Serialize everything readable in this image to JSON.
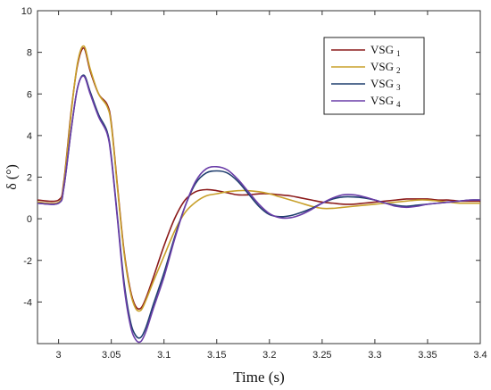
{
  "chart_data": {
    "type": "line",
    "xlabel": "Time (s)",
    "ylabel": "δ (°)",
    "xlim": [
      2.98,
      3.4
    ],
    "ylim": [
      -6,
      10
    ],
    "x_ticks": [
      3,
      3.05,
      3.1,
      3.15,
      3.2,
      3.25,
      3.3,
      3.35,
      3.4
    ],
    "x_tick_labels": [
      "3",
      "3.05",
      "3.1",
      "3.15",
      "3.2",
      "3.25",
      "3.3",
      "3.35",
      "3.4"
    ],
    "y_ticks": [
      -4,
      -2,
      0,
      2,
      4,
      6,
      8,
      10
    ],
    "y_tick_labels": [
      "-4",
      "-2",
      "0",
      "2",
      "4",
      "6",
      "8",
      "10"
    ],
    "grid": false,
    "legend_position": "top-right",
    "series": [
      {
        "name": "VSG",
        "subscript": "1",
        "color": "#8B1A1A",
        "x": [
          2.98,
          3.0,
          3.005,
          3.012,
          3.018,
          3.024,
          3.03,
          3.038,
          3.046,
          3.05,
          3.056,
          3.062,
          3.068,
          3.073,
          3.078,
          3.083,
          3.09,
          3.1,
          3.11,
          3.12,
          3.13,
          3.14,
          3.15,
          3.16,
          3.17,
          3.18,
          3.19,
          3.2,
          3.21,
          3.22,
          3.23,
          3.24,
          3.25,
          3.26,
          3.27,
          3.28,
          3.29,
          3.3,
          3.31,
          3.32,
          3.33,
          3.34,
          3.35,
          3.36,
          3.37,
          3.38,
          3.39,
          3.4
        ],
        "y": [
          0.9,
          0.9,
          1.8,
          5.2,
          7.4,
          8.2,
          7.1,
          6.0,
          5.5,
          4.6,
          1.5,
          -1.5,
          -3.4,
          -4.2,
          -4.3,
          -3.8,
          -2.8,
          -1.3,
          0.0,
          0.9,
          1.3,
          1.4,
          1.35,
          1.25,
          1.15,
          1.15,
          1.2,
          1.2,
          1.15,
          1.1,
          1.0,
          0.9,
          0.8,
          0.75,
          0.7,
          0.7,
          0.75,
          0.8,
          0.85,
          0.9,
          0.95,
          0.95,
          0.95,
          0.9,
          0.9,
          0.85,
          0.85,
          0.85
        ]
      },
      {
        "name": "VSG",
        "subscript": "2",
        "color": "#C8A02A",
        "x": [
          2.98,
          3.0,
          3.005,
          3.012,
          3.018,
          3.024,
          3.03,
          3.038,
          3.046,
          3.05,
          3.056,
          3.062,
          3.068,
          3.073,
          3.078,
          3.083,
          3.09,
          3.1,
          3.11,
          3.12,
          3.13,
          3.14,
          3.15,
          3.16,
          3.17,
          3.18,
          3.19,
          3.2,
          3.21,
          3.22,
          3.23,
          3.24,
          3.25,
          3.26,
          3.27,
          3.28,
          3.29,
          3.3,
          3.31,
          3.32,
          3.33,
          3.34,
          3.35,
          3.36,
          3.37,
          3.38,
          3.39,
          3.4
        ],
        "y": [
          0.8,
          0.8,
          1.7,
          5.1,
          7.5,
          8.3,
          7.2,
          6.0,
          5.4,
          4.5,
          1.4,
          -1.6,
          -3.5,
          -4.3,
          -4.4,
          -3.9,
          -3.0,
          -1.8,
          -0.6,
          0.3,
          0.8,
          1.1,
          1.2,
          1.3,
          1.35,
          1.35,
          1.3,
          1.2,
          1.05,
          0.9,
          0.75,
          0.6,
          0.5,
          0.5,
          0.55,
          0.6,
          0.65,
          0.7,
          0.75,
          0.8,
          0.85,
          0.9,
          0.9,
          0.85,
          0.8,
          0.75,
          0.75,
          0.75
        ]
      },
      {
        "name": "VSG",
        "subscript": "3",
        "color": "#1F3E6E",
        "x": [
          2.98,
          3.0,
          3.005,
          3.012,
          3.018,
          3.024,
          3.03,
          3.038,
          3.046,
          3.05,
          3.056,
          3.062,
          3.068,
          3.073,
          3.078,
          3.083,
          3.09,
          3.1,
          3.11,
          3.12,
          3.13,
          3.14,
          3.15,
          3.16,
          3.17,
          3.18,
          3.19,
          3.2,
          3.21,
          3.22,
          3.23,
          3.24,
          3.25,
          3.26,
          3.27,
          3.28,
          3.29,
          3.3,
          3.31,
          3.32,
          3.33,
          3.34,
          3.35,
          3.36,
          3.37,
          3.38,
          3.39,
          3.4
        ],
        "y": [
          0.75,
          0.75,
          1.5,
          4.3,
          6.3,
          6.9,
          6.1,
          5.0,
          4.2,
          3.0,
          0.0,
          -3.0,
          -4.9,
          -5.6,
          -5.7,
          -5.2,
          -4.1,
          -2.6,
          -0.9,
          0.6,
          1.7,
          2.2,
          2.3,
          2.2,
          1.8,
          1.2,
          0.6,
          0.2,
          0.1,
          0.15,
          0.3,
          0.5,
          0.75,
          0.95,
          1.05,
          1.05,
          1.0,
          0.9,
          0.75,
          0.65,
          0.6,
          0.65,
          0.7,
          0.75,
          0.8,
          0.85,
          0.9,
          0.9
        ]
      },
      {
        "name": "VSG",
        "subscript": "4",
        "color": "#6A3DA8",
        "x": [
          2.98,
          3.0,
          3.005,
          3.012,
          3.018,
          3.024,
          3.03,
          3.038,
          3.046,
          3.05,
          3.056,
          3.062,
          3.068,
          3.073,
          3.078,
          3.083,
          3.09,
          3.1,
          3.11,
          3.12,
          3.13,
          3.14,
          3.15,
          3.16,
          3.17,
          3.18,
          3.19,
          3.2,
          3.21,
          3.22,
          3.23,
          3.24,
          3.25,
          3.26,
          3.27,
          3.28,
          3.29,
          3.3,
          3.31,
          3.32,
          3.33,
          3.34,
          3.35,
          3.36,
          3.37,
          3.38,
          3.39,
          3.4
        ],
        "y": [
          0.75,
          0.75,
          1.5,
          4.3,
          6.3,
          6.85,
          6.0,
          4.9,
          4.1,
          2.9,
          -0.1,
          -3.2,
          -5.1,
          -5.8,
          -5.9,
          -5.4,
          -4.3,
          -2.8,
          -1.0,
          0.6,
          1.8,
          2.4,
          2.5,
          2.35,
          1.9,
          1.3,
          0.7,
          0.25,
          0.05,
          0.05,
          0.2,
          0.45,
          0.75,
          1.0,
          1.15,
          1.15,
          1.05,
          0.9,
          0.75,
          0.6,
          0.55,
          0.6,
          0.7,
          0.75,
          0.8,
          0.85,
          0.9,
          0.9
        ]
      }
    ]
  }
}
